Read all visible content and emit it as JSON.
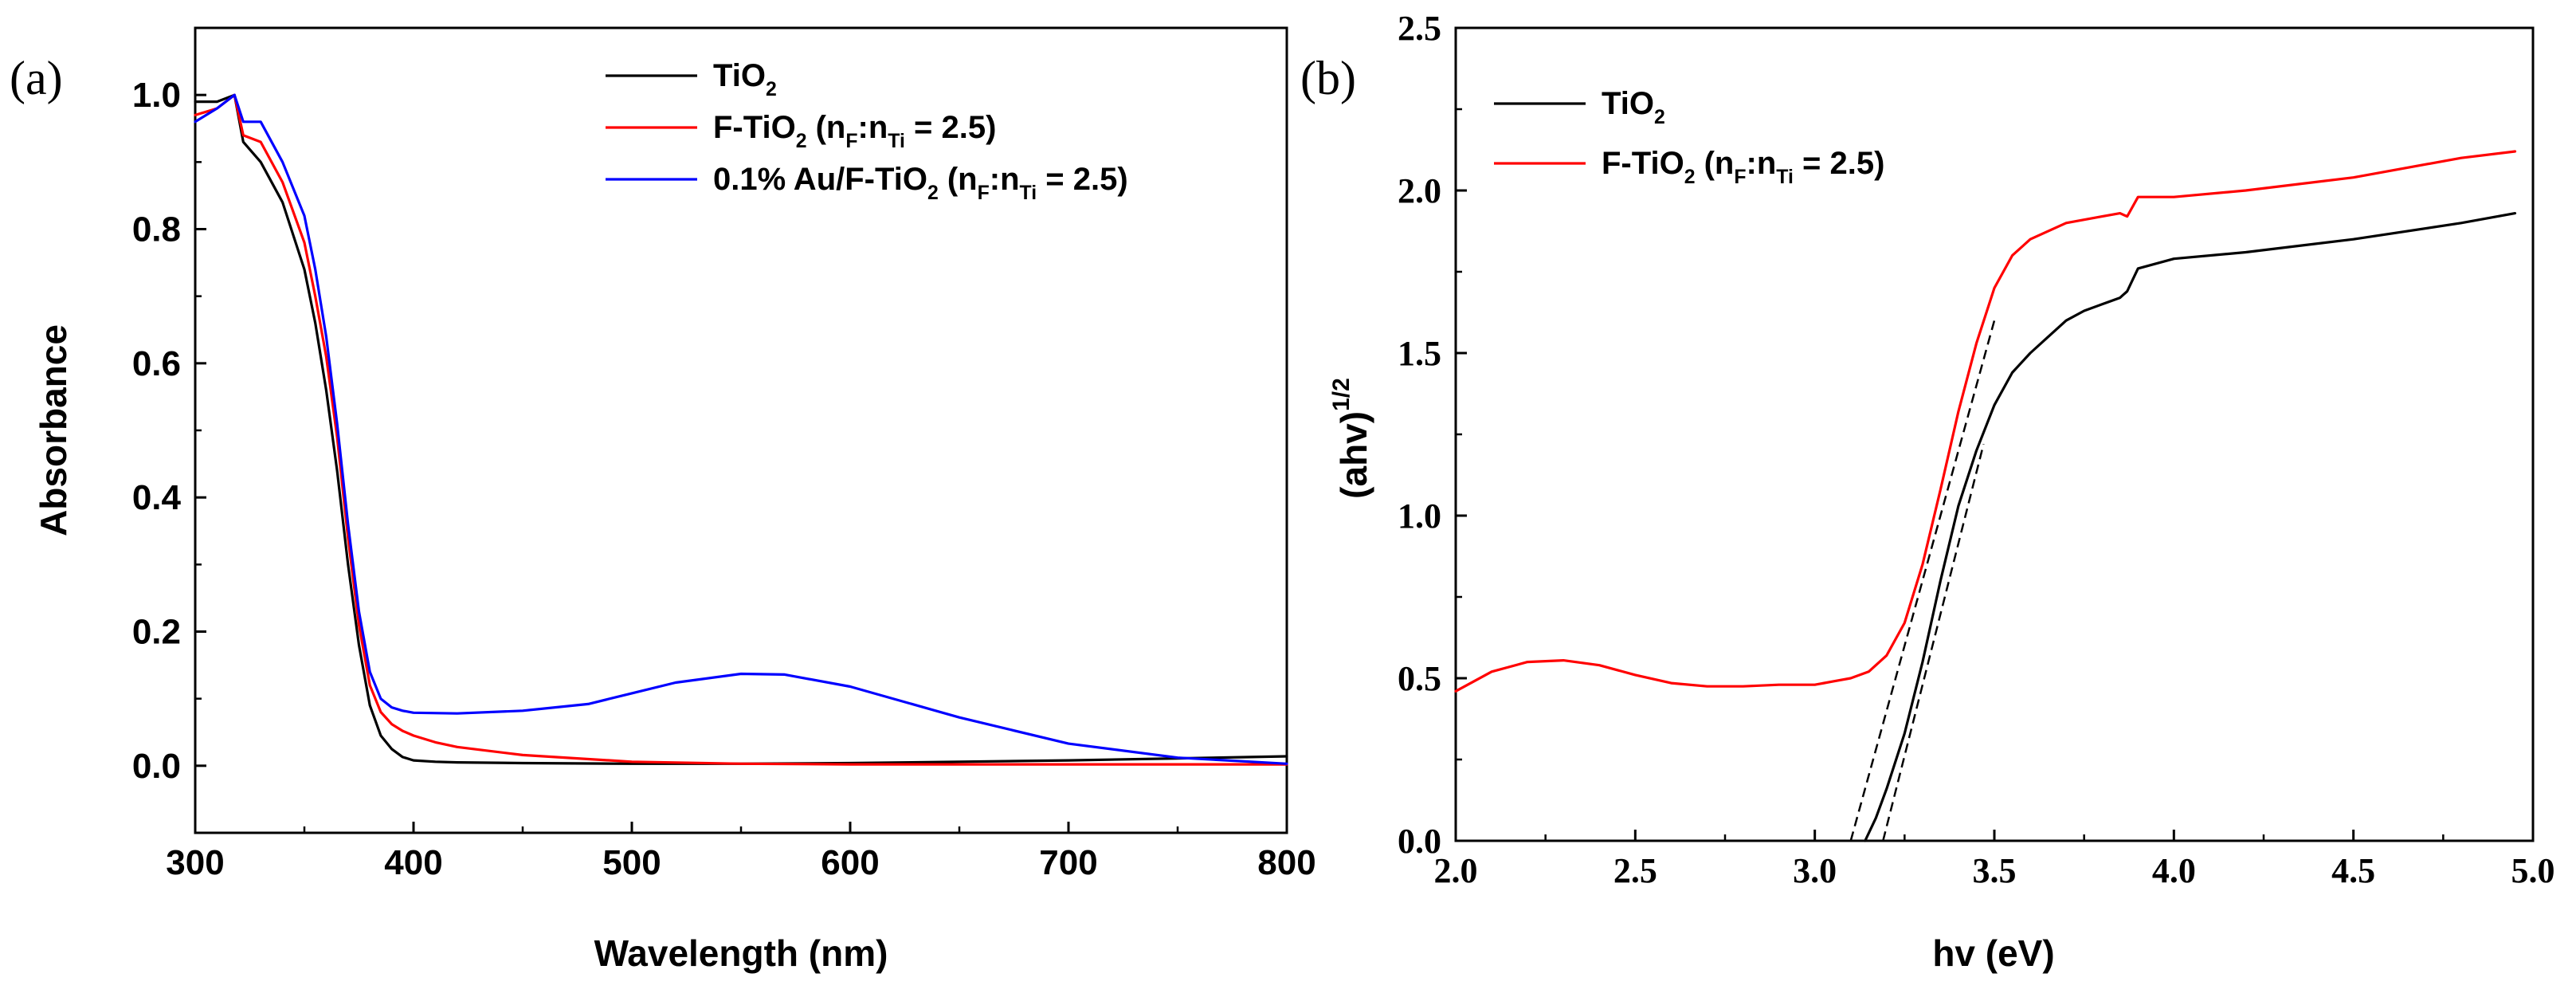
{
  "panels": [
    {
      "label": "(a)",
      "chart_data": {
        "type": "line",
        "title": "",
        "xlabel": "Wavelength (nm)",
        "ylabel": "Absorbance",
        "xlim": [
          300,
          800
        ],
        "ylim": [
          -0.1,
          1.1
        ],
        "xticks": [
          "300",
          "400",
          "500",
          "600",
          "700",
          "800"
        ],
        "yticks": [
          "0.0",
          "0.2",
          "0.4",
          "0.6",
          "0.8",
          "1.0"
        ],
        "legend_position": "top-right",
        "series": [
          {
            "name": "TiO2",
            "legend": {
              "main": "TiO",
              "sub": "2",
              "tail": ""
            },
            "color": "#000000",
            "x": [
              300,
              310,
              318,
              322,
              330,
              340,
              350,
              355,
              360,
              365,
              370,
              375,
              380,
              385,
              390,
              395,
              400,
              410,
              420,
              450,
              500,
              550,
              600,
              650,
              700,
              750,
              800
            ],
            "y": [
              0.99,
              0.99,
              1.0,
              0.93,
              0.9,
              0.84,
              0.74,
              0.66,
              0.56,
              0.44,
              0.3,
              0.18,
              0.09,
              0.045,
              0.025,
              0.013,
              0.008,
              0.006,
              0.005,
              0.004,
              0.003,
              0.003,
              0.004,
              0.006,
              0.008,
              0.011,
              0.014
            ]
          },
          {
            "name": "F-TiO2 (nF:nTi = 2.5)",
            "legend": {
              "main": "F-TiO",
              "sub": "2",
              "tail": " (n",
              "sub2": "F",
              "tail2": ":n",
              "sub3": "Ti",
              "tail3": " = 2.5)"
            },
            "color": "#ff0000",
            "x": [
              300,
              310,
              318,
              322,
              330,
              340,
              350,
              355,
              360,
              365,
              370,
              375,
              380,
              385,
              390,
              395,
              400,
              410,
              420,
              450,
              500,
              550,
              600,
              650,
              700,
              750,
              800
            ],
            "y": [
              0.97,
              0.98,
              1.0,
              0.94,
              0.93,
              0.87,
              0.78,
              0.7,
              0.61,
              0.49,
              0.34,
              0.21,
              0.12,
              0.08,
              0.062,
              0.052,
              0.045,
              0.035,
              0.028,
              0.016,
              0.006,
              0.003,
              0.002,
              0.002,
              0.002,
              0.002,
              0.002
            ]
          },
          {
            "name": "0.1% Au/F-TiO2 (nF:nTi = 2.5)",
            "legend": {
              "main": "0.1% Au/F-TiO",
              "sub": "2",
              "tail": " (n",
              "sub2": "F",
              "tail2": ":n",
              "sub3": "Ti",
              "tail3": " = 2.5)"
            },
            "color": "#0000ff",
            "x": [
              300,
              310,
              318,
              322,
              330,
              340,
              350,
              355,
              360,
              365,
              370,
              375,
              380,
              385,
              390,
              395,
              400,
              420,
              450,
              480,
              500,
              520,
              550,
              570,
              600,
              650,
              700,
              750,
              800
            ],
            "y": [
              0.96,
              0.98,
              1.0,
              0.96,
              0.96,
              0.9,
              0.82,
              0.74,
              0.64,
              0.51,
              0.36,
              0.23,
              0.14,
              0.1,
              0.087,
              0.082,
              0.079,
              0.078,
              0.082,
              0.092,
              0.108,
              0.124,
              0.137,
              0.136,
              0.118,
              0.072,
              0.033,
              0.012,
              0.003
            ]
          }
        ]
      }
    },
    {
      "label": "(b)",
      "chart_data": {
        "type": "line",
        "title": "",
        "xlabel": "hv (eV)",
        "ylabel": "(ahv)",
        "ylabel_sup": "1/2",
        "xlim": [
          2.0,
          5.0
        ],
        "ylim": [
          0.0,
          2.5
        ],
        "xticks": [
          "2.0",
          "2.5",
          "3.0",
          "3.5",
          "4.0",
          "4.5",
          "5.0"
        ],
        "yticks": [
          "0.0",
          "0.5",
          "1.0",
          "1.5",
          "2.0",
          "2.5"
        ],
        "legend_position": "top-left",
        "series": [
          {
            "name": "TiO2",
            "legend": {
              "main": "TiO",
              "sub": "2",
              "tail": ""
            },
            "color": "#000000",
            "x": [
              3.14,
              3.17,
              3.2,
              3.25,
              3.3,
              3.35,
              3.4,
              3.45,
              3.5,
              3.55,
              3.6,
              3.65,
              3.7,
              3.75,
              3.8,
              3.85,
              3.87,
              3.9,
              4.0,
              4.2,
              4.5,
              4.8,
              4.95
            ],
            "y": [
              0.0,
              0.07,
              0.16,
              0.33,
              0.55,
              0.8,
              1.03,
              1.2,
              1.34,
              1.44,
              1.5,
              1.55,
              1.6,
              1.63,
              1.65,
              1.67,
              1.69,
              1.76,
              1.79,
              1.81,
              1.85,
              1.9,
              1.93
            ]
          },
          {
            "name": "F-TiO2 (nF:nTi = 2.5)",
            "legend": {
              "main": "F-TiO",
              "sub": "2",
              "tail": " (n",
              "sub2": "F",
              "tail2": ":n",
              "sub3": "Ti",
              "tail3": " = 2.5)"
            },
            "color": "#ff0000",
            "x": [
              2.0,
              2.1,
              2.2,
              2.3,
              2.4,
              2.5,
              2.6,
              2.7,
              2.8,
              2.9,
              3.0,
              3.05,
              3.1,
              3.15,
              3.2,
              3.25,
              3.3,
              3.35,
              3.4,
              3.45,
              3.5,
              3.55,
              3.6,
              3.7,
              3.8,
              3.85,
              3.87,
              3.9,
              4.0,
              4.2,
              4.5,
              4.8,
              4.95
            ],
            "y": [
              0.46,
              0.52,
              0.55,
              0.555,
              0.54,
              0.51,
              0.485,
              0.475,
              0.475,
              0.48,
              0.48,
              0.49,
              0.5,
              0.52,
              0.57,
              0.67,
              0.85,
              1.08,
              1.32,
              1.53,
              1.7,
              1.8,
              1.85,
              1.9,
              1.92,
              1.93,
              1.92,
              1.98,
              1.98,
              2.0,
              2.04,
              2.1,
              2.12
            ]
          }
        ],
        "annotations": [
          {
            "type": "tangent-line",
            "style": "dashed",
            "color": "#000000",
            "x": [
              3.1,
              3.5
            ],
            "y": [
              0.0,
              1.6
            ]
          },
          {
            "type": "tangent-line",
            "style": "dashed",
            "color": "#000000",
            "x": [
              3.19,
              3.47
            ],
            "y": [
              0.0,
              1.22
            ]
          }
        ]
      }
    }
  ]
}
